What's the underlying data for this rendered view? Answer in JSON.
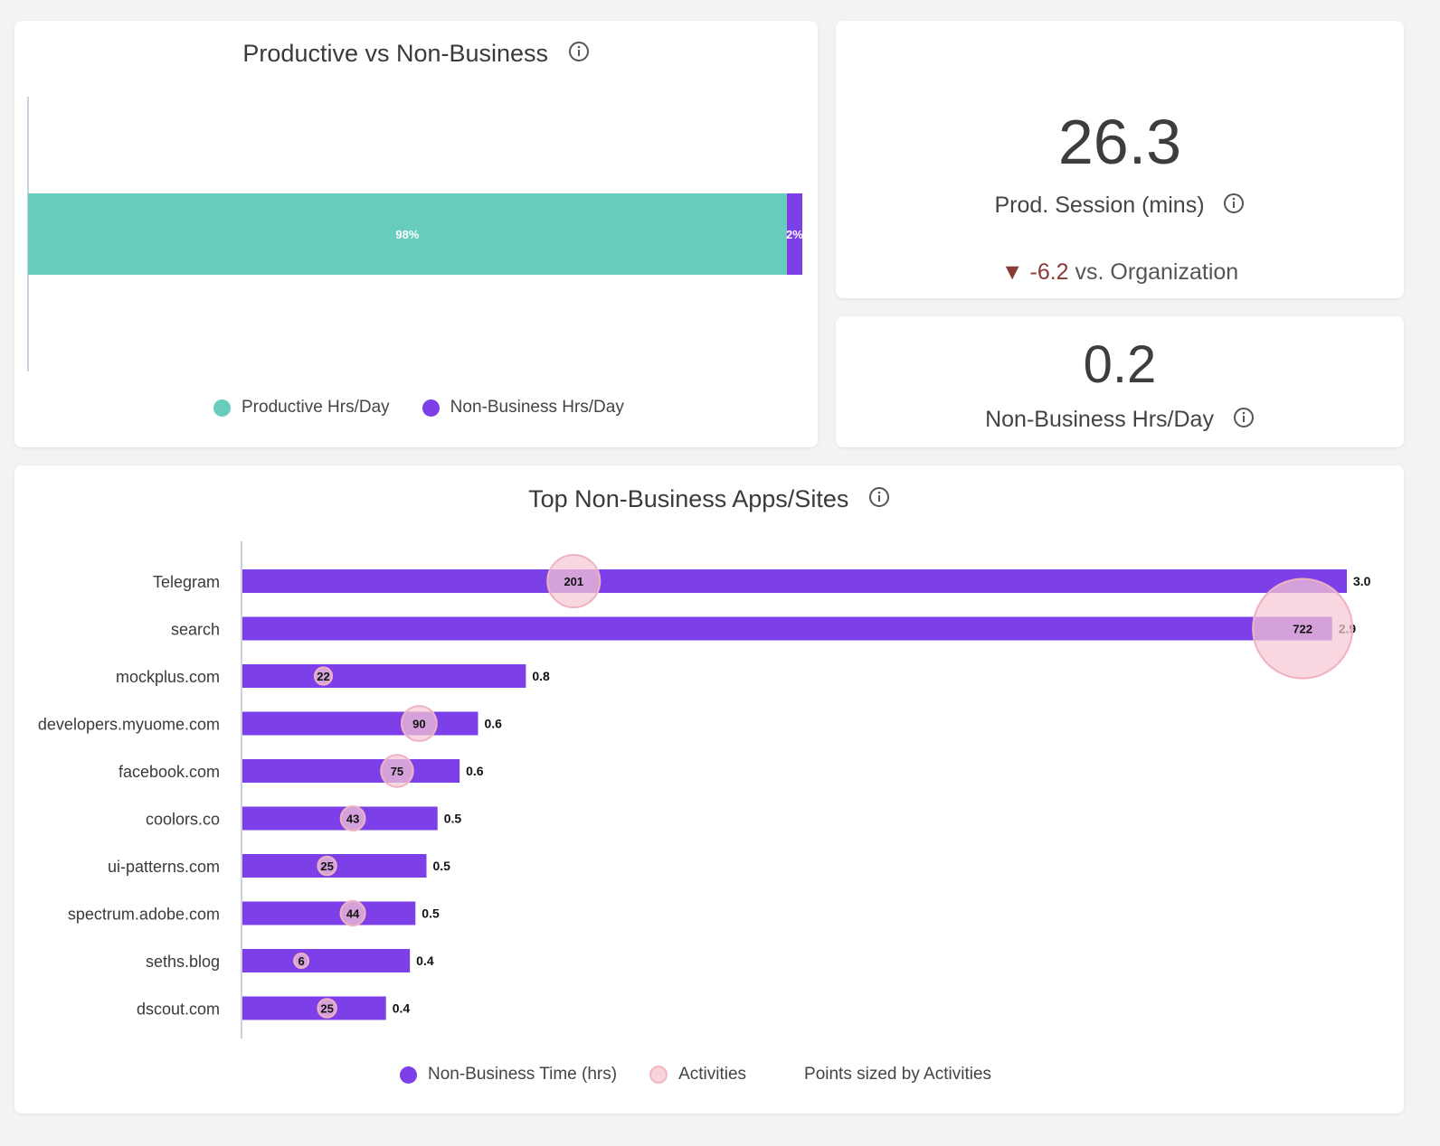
{
  "productive_card": {
    "title": "Productive vs Non-Business",
    "legend": [
      {
        "label": "Productive Hrs/Day",
        "color": "#66ccbc"
      },
      {
        "label": "Non-Business Hrs/Day",
        "color": "#7c3fe8"
      }
    ]
  },
  "session_card": {
    "value": "26.3",
    "label": "Prod. Session (mins)",
    "delta_arrow": "▼",
    "delta_value": "-6.2",
    "delta_suffix": " vs. Organization"
  },
  "nonbusiness_card": {
    "value": "0.2",
    "label": "Non-Business Hrs/Day"
  },
  "top_card": {
    "title": "Top Non-Business Apps/Sites",
    "legend": {
      "time_label": "Non-Business Time (hrs)",
      "activities_label": "Activities",
      "note": "Points sized by Activities"
    }
  },
  "chart_data": [
    {
      "type": "bar",
      "orientation": "horizontal-stacked-100",
      "title": "Productive vs Non-Business",
      "series": [
        {
          "name": "Productive Hrs/Day",
          "values": [
            98
          ],
          "label": "98%",
          "color": "#66ccbc"
        },
        {
          "name": "Non-Business Hrs/Day",
          "values": [
            2
          ],
          "label": "2%",
          "color": "#7c3fe8"
        }
      ],
      "legend": "bottom"
    },
    {
      "type": "bar",
      "orientation": "horizontal",
      "title": "Top Non-Business Apps/Sites",
      "categories": [
        "Telegram",
        "search",
        "mockplus.com",
        "developers.myuome.com",
        "facebook.com",
        "coolors.co",
        "ui-patterns.com",
        "spectrum.adobe.com",
        "seths.blog",
        "dscout.com"
      ],
      "series": [
        {
          "name": "Non-Business Time (hrs)",
          "values": [
            3.0,
            2.9,
            0.8,
            0.6,
            0.6,
            0.5,
            0.5,
            0.5,
            0.4,
            0.4
          ],
          "color": "#7c3fe8"
        },
        {
          "name": "Activities",
          "values": [
            201,
            722,
            22,
            90,
            75,
            43,
            25,
            44,
            6,
            25
          ],
          "color": "#f7c9d2"
        }
      ],
      "value_labels": [
        "3.0",
        "2.9",
        "0.8",
        "0.6",
        "0.6",
        "0.5",
        "0.5",
        "0.5",
        "0.4",
        "0.4"
      ],
      "activity_positions_hrs": [
        0.9,
        2.88,
        0.22,
        0.48,
        0.42,
        0.3,
        0.23,
        0.3,
        0.16,
        0.23
      ],
      "bar_lengths_hrs": [
        3.0,
        2.96,
        0.77,
        0.64,
        0.59,
        0.53,
        0.5,
        0.47,
        0.455,
        0.39
      ],
      "xlim": [
        0,
        3.0
      ],
      "legend": "bottom"
    }
  ]
}
